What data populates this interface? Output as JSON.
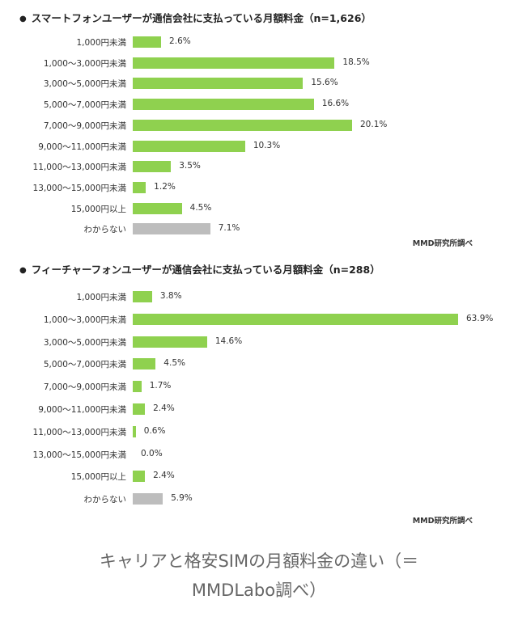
{
  "chart_data": [
    {
      "type": "bar",
      "orientation": "horizontal",
      "title": "スマートフォンユーザーが通信会社に支払っている月額料金（n=1,626）",
      "categories": [
        "1,000円未満",
        "1,000～3,000円未満",
        "3,000～5,000円未満",
        "5,000～7,000円未満",
        "7,000～9,000円未満",
        "9,000～11,000円未満",
        "11,000～13,000円未満",
        "13,000～15,000円未満",
        "15,000円以上",
        "わからない"
      ],
      "values": [
        2.6,
        18.5,
        15.6,
        16.6,
        20.1,
        10.3,
        3.5,
        1.2,
        4.5,
        7.1
      ],
      "value_labels": [
        "2.6%",
        "18.5%",
        "15.6%",
        "16.6%",
        "20.1%",
        "10.3%",
        "3.5%",
        "1.2%",
        "4.5%",
        "7.1%"
      ],
      "unit": "%",
      "colors": {
        "bar": "#8fd14f",
        "unknown_bar": "#bdbdbd"
      },
      "source": "MMD研究所調べ"
    },
    {
      "type": "bar",
      "orientation": "horizontal",
      "title": "フィーチャーフォンユーザーが通信会社に支払っている月額料金（n=288）",
      "categories": [
        "1,000円未満",
        "1,000～3,000円未満",
        "3,000～5,000円未満",
        "5,000～7,000円未満",
        "7,000～9,000円未満",
        "9,000～11,000円未満",
        "11,000～13,000円未満",
        "13,000～15,000円未満",
        "15,000円以上",
        "わからない"
      ],
      "values": [
        3.8,
        63.9,
        14.6,
        4.5,
        1.7,
        2.4,
        0.6,
        0.0,
        2.4,
        5.9
      ],
      "value_labels": [
        "3.8%",
        "63.9%",
        "14.6%",
        "4.5%",
        "1.7%",
        "2.4%",
        "0.6%",
        "0.0%",
        "2.4%",
        "5.9%"
      ],
      "unit": "%",
      "colors": {
        "bar": "#8fd14f",
        "unknown_bar": "#bdbdbd"
      },
      "source": "MMD研究所調べ"
    }
  ],
  "caption": {
    "line1": "キャリアと格安SIMの月額料金の違い（＝",
    "line2": "MMDLabo調べ）"
  },
  "bullet": "●"
}
